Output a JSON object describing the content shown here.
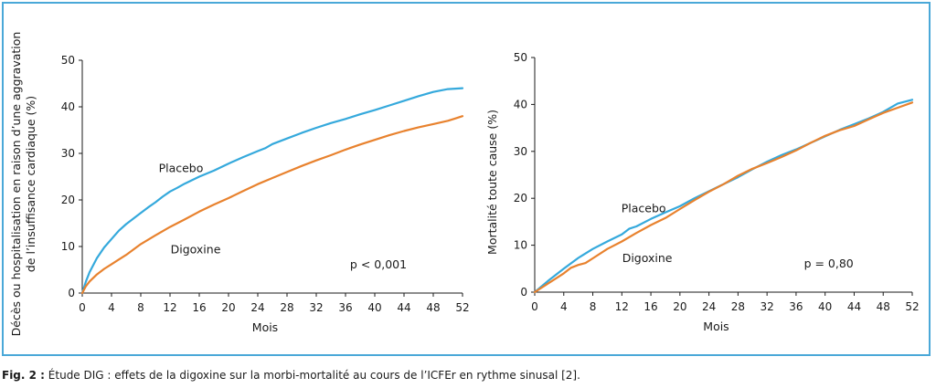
{
  "caption": {
    "label": "Fig. 2 :",
    "text": "Étude DIG : effets de la digoxine sur la morbi-mortalité au cours de l’ICFEr en rythme sinusal [2]."
  },
  "colors": {
    "placebo": "#35a9dc",
    "digoxine": "#e8822e",
    "frame": "#4aa8d8"
  },
  "chart_data": [
    {
      "type": "line",
      "xlabel": "Mois",
      "ylabel_lines": [
        "Décès ou hospitalisation en raison d’une aggravation",
        "de l’insuffisance cardiaque (%)"
      ],
      "xlim": [
        0,
        52
      ],
      "ylim": [
        0,
        50
      ],
      "xticks": [
        0,
        4,
        8,
        12,
        16,
        20,
        24,
        28,
        32,
        36,
        40,
        44,
        48,
        52
      ],
      "yticks": [
        0,
        10,
        20,
        30,
        40,
        50
      ],
      "series": [
        {
          "name": "Placebo",
          "color_key": "placebo",
          "points": [
            [
              0,
              0
            ],
            [
              0.5,
              2.5
            ],
            [
              1,
              4.5
            ],
            [
              2,
              7.5
            ],
            [
              3,
              9.8
            ],
            [
              4,
              11.6
            ],
            [
              5,
              13.4
            ],
            [
              6,
              14.8
            ],
            [
              7,
              16
            ],
            [
              8,
              17.2
            ],
            [
              9,
              18.4
            ],
            [
              10,
              19.5
            ],
            [
              11,
              20.7
            ],
            [
              12,
              21.8
            ],
            [
              13,
              22.6
            ],
            [
              14,
              23.5
            ],
            [
              16,
              25
            ],
            [
              18,
              26.3
            ],
            [
              20,
              27.8
            ],
            [
              22,
              29.2
            ],
            [
              24,
              30.5
            ],
            [
              25,
              31.1
            ],
            [
              26,
              32
            ],
            [
              28,
              33.2
            ],
            [
              30,
              34.4
            ],
            [
              32,
              35.5
            ],
            [
              34,
              36.5
            ],
            [
              36,
              37.4
            ],
            [
              38,
              38.4
            ],
            [
              40,
              39.3
            ],
            [
              42,
              40.3
            ],
            [
              44,
              41.3
            ],
            [
              46,
              42.3
            ],
            [
              48,
              43.2
            ],
            [
              50,
              43.8
            ],
            [
              52,
              44
            ]
          ]
        },
        {
          "name": "Digoxine",
          "color_key": "digoxine",
          "points": [
            [
              0,
              0
            ],
            [
              0.5,
              1.5
            ],
            [
              1,
              2.5
            ],
            [
              2,
              4
            ],
            [
              3,
              5.2
            ],
            [
              4,
              6.2
            ],
            [
              6,
              8.2
            ],
            [
              8,
              10.5
            ],
            [
              10,
              12.4
            ],
            [
              12,
              14.2
            ],
            [
              14,
              15.8
            ],
            [
              16,
              17.5
            ],
            [
              18,
              19
            ],
            [
              20,
              20.4
            ],
            [
              22,
              21.9
            ],
            [
              24,
              23.4
            ],
            [
              26,
              24.7
            ],
            [
              28,
              26
            ],
            [
              30,
              27.3
            ],
            [
              32,
              28.5
            ],
            [
              34,
              29.6
            ],
            [
              36,
              30.8
            ],
            [
              38,
              31.9
            ],
            [
              40,
              32.9
            ],
            [
              42,
              33.9
            ],
            [
              44,
              34.8
            ],
            [
              46,
              35.6
            ],
            [
              48,
              36.3
            ],
            [
              50,
              37
            ],
            [
              51,
              37.5
            ],
            [
              52,
              38
            ]
          ]
        }
      ],
      "annotations": [
        {
          "text": "Placebo",
          "x": 13.5,
          "y": 26
        },
        {
          "text": "Digoxine",
          "x": 15.5,
          "y": 8.5
        },
        {
          "text": "p < 0,001",
          "x": 40.5,
          "y": 5.3
        }
      ]
    },
    {
      "type": "line",
      "xlabel": "Mois",
      "ylabel_lines": [
        "Mortalité toute cause (%)"
      ],
      "xlim": [
        0,
        52
      ],
      "ylim": [
        0,
        50
      ],
      "xticks": [
        0,
        4,
        8,
        12,
        16,
        20,
        24,
        28,
        32,
        36,
        40,
        44,
        48,
        52
      ],
      "yticks": [
        0,
        10,
        20,
        30,
        40,
        50
      ],
      "series": [
        {
          "name": "Placebo",
          "color_key": "placebo",
          "points": [
            [
              0,
              0
            ],
            [
              2,
              2.6
            ],
            [
              4,
              5
            ],
            [
              6,
              7.3
            ],
            [
              8,
              9.2
            ],
            [
              10,
              10.8
            ],
            [
              12,
              12.3
            ],
            [
              13,
              13.5
            ],
            [
              14,
              14
            ],
            [
              16,
              15.6
            ],
            [
              18,
              17
            ],
            [
              20,
              18.3
            ],
            [
              22,
              20
            ],
            [
              24,
              21.5
            ],
            [
              26,
              23
            ],
            [
              28,
              24.5
            ],
            [
              30,
              26.2
            ],
            [
              32,
              27.8
            ],
            [
              34,
              29.2
            ],
            [
              36,
              30.4
            ],
            [
              38,
              31.8
            ],
            [
              40,
              33.2
            ],
            [
              42,
              34.6
            ],
            [
              44,
              35.8
            ],
            [
              46,
              37
            ],
            [
              48,
              38.4
            ],
            [
              50,
              40.2
            ],
            [
              52,
              41
            ]
          ]
        },
        {
          "name": "Digoxine",
          "color_key": "digoxine",
          "points": [
            [
              0,
              0
            ],
            [
              2,
              2
            ],
            [
              4,
              4
            ],
            [
              5,
              5.2
            ],
            [
              6,
              5.8
            ],
            [
              7,
              6.2
            ],
            [
              8,
              7.2
            ],
            [
              10,
              9.2
            ],
            [
              12,
              10.8
            ],
            [
              14,
              12.6
            ],
            [
              16,
              14.3
            ],
            [
              18,
              15.8
            ],
            [
              20,
              17.7
            ],
            [
              22,
              19.6
            ],
            [
              24,
              21.4
            ],
            [
              26,
              23
            ],
            [
              28,
              24.8
            ],
            [
              30,
              26.3
            ],
            [
              32,
              27.5
            ],
            [
              34,
              28.8
            ],
            [
              36,
              30.2
            ],
            [
              38,
              31.8
            ],
            [
              40,
              33.3
            ],
            [
              42,
              34.5
            ],
            [
              44,
              35.4
            ],
            [
              46,
              36.8
            ],
            [
              48,
              38.2
            ],
            [
              50,
              39.3
            ],
            [
              52,
              40.4
            ]
          ]
        }
      ],
      "annotations": [
        {
          "text": "Placebo",
          "x": 15,
          "y": 17
        },
        {
          "text": "Digoxine",
          "x": 15.5,
          "y": 6.4
        },
        {
          "text": "p = 0,80",
          "x": 40.5,
          "y": 5.3
        }
      ]
    }
  ]
}
